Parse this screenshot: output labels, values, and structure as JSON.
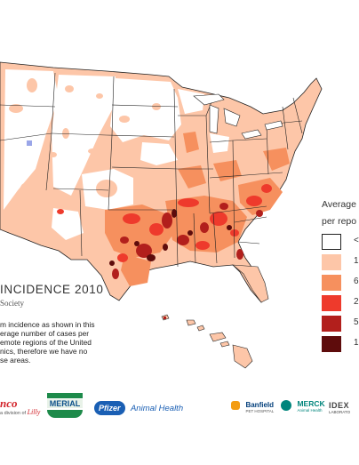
{
  "header": {
    "title": "INCIDENCE 2010",
    "subtitle": "Society"
  },
  "description": {
    "lines": [
      "m incidence as shown in this",
      "erage number of cases per",
      "emote regions of the United",
      "nics, therefore we have no",
      "se areas."
    ]
  },
  "legend": {
    "title_lines": [
      "Average",
      "per repo"
    ],
    "items": [
      {
        "label": "<",
        "color": "#ffffff"
      },
      {
        "label": "1",
        "color": "#fdc6a8"
      },
      {
        "label": "6",
        "color": "#f6905e"
      },
      {
        "label": "2",
        "color": "#ee3a2c"
      },
      {
        "label": "5",
        "color": "#b21f1c"
      },
      {
        "label": "1",
        "color": "#5e0c0c"
      }
    ]
  },
  "sponsors": {
    "elanco_text": "nco",
    "elanco_sub": "a division of",
    "lilly": "Lilly",
    "merial": "MERIAL",
    "pfizer": "Pfizer",
    "pfizer_tail": "Animal Health",
    "banfield": "Banfield",
    "banfield_sub": "PET HOSPITAL",
    "merck": "MERCK",
    "merck_sub": "Animal Health",
    "idexx": "IDEX",
    "idexx_sub": "LABORATO"
  },
  "colors": {
    "white": "#ffffff",
    "light": "#fdc6a8",
    "mid": "#f6905e",
    "bright": "#ee3a2c",
    "dark": "#b21f1c",
    "darkest": "#5e0c0c",
    "border": "#222222",
    "highlight_blue": "#9aa6e8"
  }
}
